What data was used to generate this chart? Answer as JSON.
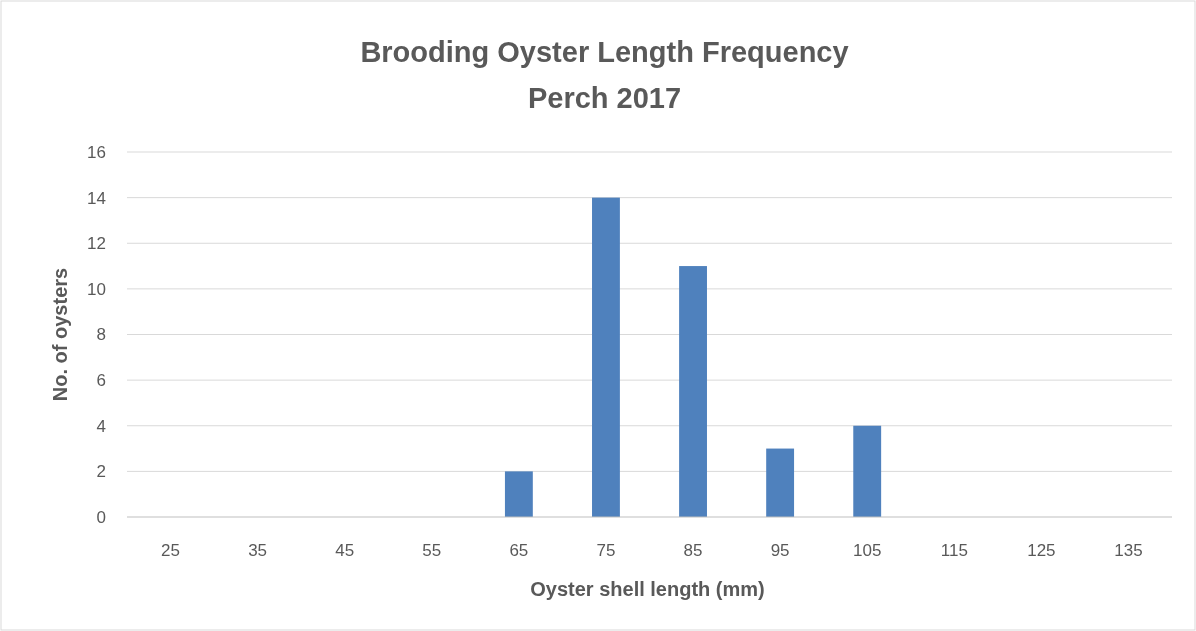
{
  "chart_data": {
    "type": "bar",
    "title": "Brooding Oyster Length Frequency",
    "subtitle": "Perch 2017",
    "xlabel": "Oyster shell length (mm)",
    "ylabel": "No. of oysters",
    "categories": [
      "25",
      "35",
      "45",
      "55",
      "65",
      "75",
      "85",
      "95",
      "105",
      "115",
      "125",
      "135"
    ],
    "values": [
      0,
      0,
      0,
      0,
      2,
      14,
      11,
      3,
      4,
      0,
      0,
      0
    ],
    "color": "#4f81bd",
    "ylim": [
      0,
      16
    ],
    "yticks": [
      0,
      2,
      4,
      6,
      8,
      10,
      12,
      14,
      16
    ],
    "grid": "y"
  }
}
